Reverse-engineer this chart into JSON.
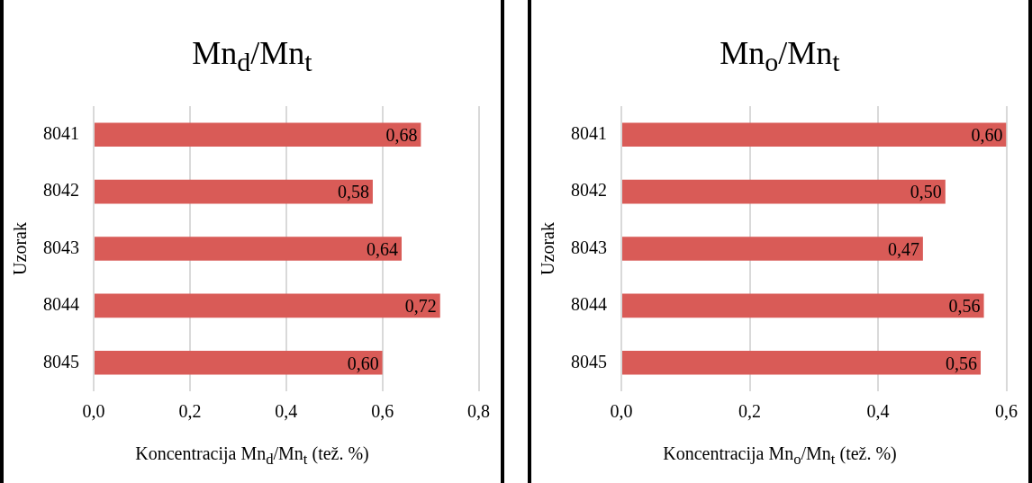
{
  "chart_data": [
    {
      "type": "bar",
      "orientation": "horizontal",
      "title": "Mn$_{d}$/Mn$_{t}$",
      "xlabel": "Koncentracija Mn$_{d}$/Mn$_{t}$ (tež. %)",
      "ylabel": "Uzorak",
      "categories": [
        "8041",
        "8042",
        "8043",
        "8044",
        "8045"
      ],
      "values": [
        0.68,
        0.58,
        0.64,
        0.72,
        0.6
      ],
      "value_labels": [
        "0,68",
        "0,58",
        "0,64",
        "0,72",
        "0,60"
      ],
      "color": "#d95b57",
      "xlim": [
        0,
        0.8
      ],
      "xticks": [
        {
          "value": 0,
          "label": "0,0"
        },
        {
          "value": 0.2,
          "label": "0,2"
        },
        {
          "value": 0.4,
          "label": "0,4"
        },
        {
          "value": 0.6,
          "label": "0,6"
        },
        {
          "value": 0.8,
          "label": "0,8"
        }
      ],
      "grid": "x",
      "legend": false
    },
    {
      "type": "bar",
      "orientation": "horizontal",
      "title": "Mn$_{o}$/Mn$_{t}$",
      "xlabel": "Koncentracija Mn$_{o}$/Mn$_{t}$ (tež. %)",
      "ylabel": "Uzorak",
      "categories": [
        "8041",
        "8042",
        "8043",
        "8044",
        "8045"
      ],
      "values": [
        0.6,
        0.505,
        0.47,
        0.565,
        0.56
      ],
      "value_labels": [
        "0,60",
        "0,50",
        "0,47",
        "0,56",
        "0,56"
      ],
      "color": "#d95b57",
      "xlim": [
        0,
        0.6
      ],
      "xticks": [
        {
          "value": 0,
          "label": "0,0"
        },
        {
          "value": 0.2,
          "label": "0,2"
        },
        {
          "value": 0.4,
          "label": "0,4"
        },
        {
          "value": 0.6,
          "label": "0,6"
        }
      ],
      "grid": "x",
      "legend": false
    }
  ]
}
